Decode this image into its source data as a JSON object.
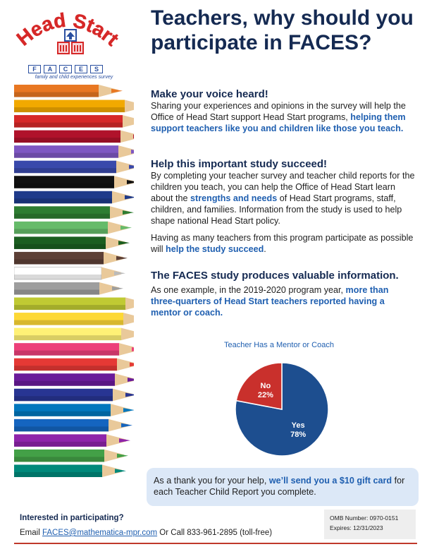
{
  "logo": {
    "wordmark": "Head Start",
    "letters": [
      "F",
      "A",
      "C",
      "E",
      "S"
    ],
    "subtitle": "family and child experiences survey",
    "red": "#d62828",
    "blue": "#2a4fa0"
  },
  "title": "Teachers, why should you participate in FACES?",
  "section1": {
    "heading": "Make your voice heard!",
    "text": "Sharing your experiences and opinions in the survey will help the Office of Head Start support Head Start programs, ",
    "highlight": "helping them support teachers like you and children like those you teach."
  },
  "section2": {
    "heading": "Help this important study succeed!",
    "p1_a": "By completing your teacher survey and teacher child reports for the children you teach, you can help the Office of Head Start learn about the ",
    "p1_hl": "strengths and needs",
    "p1_b": " of Head Start programs, staff, children, and families. Information from the study is used to help shape national Head Start policy.",
    "p2_a": "Having as many teachers from this program participate as possible will ",
    "p2_hl": "help the study succeed",
    "p2_b": "."
  },
  "section3": {
    "heading": "The FACES study produces valuable information.",
    "text": "As one example, in the 2019-2020 program year, ",
    "highlight": "more than three-quarters of Head Start teachers reported having a mentor or coach."
  },
  "chart_data": {
    "type": "pie",
    "title": "Teacher Has a Mentor or Coach",
    "slices": [
      {
        "label": "Yes",
        "value": 78,
        "display": "78%",
        "color": "#1d4e8f"
      },
      {
        "label": "No",
        "value": 22,
        "display": "22%",
        "color": "#c9302c"
      }
    ]
  },
  "thanks": {
    "text_a": "As a thank you for your help, ",
    "highlight": "we’ll send you a $10 gift card",
    "text_b": " for each Teacher Child Report you complete."
  },
  "footer": {
    "question": "Interested in participating?",
    "email_prefix": "Email ",
    "email": "FACES@mathematica-mpr.com",
    "call": " Or Call 833-961-2895 (toll-free)",
    "omb_number": "OMB Number: 0970-0151",
    "expires": "Expires: 12/31/2023"
  },
  "pencil_colors": [
    "#e87722",
    "#f2a900",
    "#d62828",
    "#b0122b",
    "#7e57c2",
    "#3949ab",
    "#111111",
    "#1e3a8a",
    "#2e7d32",
    "#66bb6a",
    "#1b5e20",
    "#5d4037",
    "#ffffff",
    "#9e9e9e",
    "#c0ca33",
    "#fdd835",
    "#fff176",
    "#ec407a",
    "#e53935",
    "#6a1b9a",
    "#283593",
    "#0277bd",
    "#1565c0",
    "#8e24aa",
    "#43a047",
    "#00897b"
  ]
}
